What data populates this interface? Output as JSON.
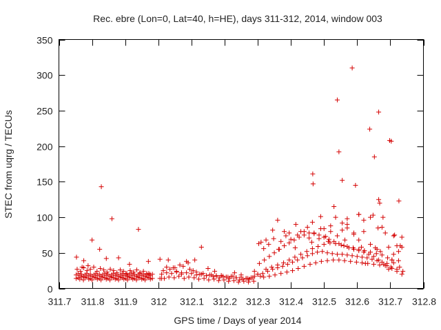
{
  "chart_data": {
    "type": "scatter",
    "title": "Rec. ebre (Lon=0, Lat=40, h=HE), days 311-312, 2014, window 003",
    "xlabel": "GPS time / Days of year 2014",
    "ylabel": "STEC from uqrg / TECUs",
    "xlim": [
      311.7,
      312.8
    ],
    "ylim": [
      0,
      350
    ],
    "xticks": [
      311.7,
      311.8,
      311.9,
      312.0,
      312.1,
      312.2,
      312.3,
      312.4,
      312.5,
      312.6,
      312.7,
      312.8
    ],
    "xtick_labels": [
      "311.7",
      "311.8",
      "311.9",
      "312",
      "312.1",
      "312.2",
      "312.3",
      "312.4",
      "312.5",
      "312.6",
      "312.7",
      "312.8"
    ],
    "yticks": [
      0,
      50,
      100,
      150,
      200,
      250,
      300,
      350
    ],
    "ytick_labels": [
      "0",
      "50",
      "100",
      "150",
      "200",
      "250",
      "300",
      "350"
    ],
    "marker": "plus",
    "color": "#d40000",
    "grid": false,
    "series": [
      {
        "name": "STEC",
        "x": [
          311.752,
          311.752,
          311.758,
          311.758,
          311.763,
          311.763,
          311.768,
          311.768,
          311.774,
          311.774,
          311.779,
          311.779,
          311.784,
          311.784,
          311.79,
          311.79,
          311.795,
          311.795,
          311.8,
          311.8,
          311.806,
          311.806,
          311.811,
          311.811,
          311.816,
          311.816,
          311.822,
          311.822,
          311.827,
          311.827,
          311.832,
          311.832,
          311.838,
          311.838,
          311.843,
          311.843,
          311.848,
          311.848,
          311.854,
          311.854,
          311.859,
          311.859,
          311.864,
          311.864,
          311.87,
          311.87,
          311.875,
          311.875,
          311.88,
          311.88,
          311.886,
          311.886,
          311.891,
          311.891,
          311.896,
          311.896,
          311.902,
          311.902,
          311.907,
          311.907,
          311.912,
          311.912,
          311.918,
          311.918,
          311.923,
          311.923,
          311.928,
          311.928,
          311.934,
          311.934,
          311.939,
          311.939,
          311.944,
          311.944,
          311.95,
          311.95,
          311.955,
          311.955,
          311.96,
          311.96,
          311.966,
          311.966,
          311.971,
          311.971,
          311.976,
          311.976,
          311.982,
          311.982,
          311.755,
          311.765,
          311.775,
          311.785,
          311.795,
          311.805,
          311.815,
          311.825,
          311.835,
          311.845,
          311.855,
          311.865,
          311.875,
          311.885,
          311.895,
          311.905,
          311.915,
          311.925,
          311.935,
          311.945,
          311.955,
          311.965,
          311.975,
          311.753,
          311.77,
          311.775,
          311.788,
          311.8,
          311.823,
          311.828,
          311.843,
          311.86,
          311.88,
          311.913,
          311.94,
          311.97,
          312.005,
          312.01,
          312.018,
          312.025,
          312.032,
          312.04,
          312.048,
          312.055,
          312.062,
          312.07,
          312.078,
          312.085,
          312.092,
          312.1,
          312.108,
          312.115,
          312.122,
          312.13,
          312.138,
          312.145,
          312.152,
          312.16,
          312.168,
          312.175,
          312.182,
          312.19,
          312.198,
          312.205,
          312.212,
          312.22,
          312.228,
          312.235,
          312.242,
          312.25,
          312.258,
          312.265,
          312.272,
          312.28,
          312.288,
          312.005,
          312.015,
          312.025,
          312.035,
          312.045,
          312.055,
          312.065,
          312.075,
          312.085,
          312.095,
          312.105,
          312.115,
          312.125,
          312.135,
          312.145,
          312.155,
          312.165,
          312.175,
          312.185,
          312.195,
          312.205,
          312.215,
          312.225,
          312.235,
          312.245,
          312.255,
          312.265,
          312.275,
          312.285,
          312.01,
          312.03,
          312.05,
          312.07,
          312.09,
          312.11,
          312.13,
          312.15,
          312.17,
          312.19,
          312.21,
          312.23,
          312.25,
          312.27,
          312.29,
          312.3,
          312.318,
          312.335,
          312.352,
          312.37,
          312.388,
          312.405,
          312.422,
          312.44,
          312.458,
          312.475,
          312.492,
          312.51,
          312.528,
          312.545,
          312.562,
          312.58,
          312.598,
          312.615,
          312.632,
          312.65,
          312.668,
          312.685,
          312.702,
          312.72,
          312.738,
          312.3,
          312.315,
          312.33,
          312.345,
          312.36,
          312.375,
          312.39,
          312.405,
          312.42,
          312.435,
          312.45,
          312.465,
          312.48,
          312.495,
          312.51,
          312.525,
          312.54,
          312.555,
          312.57,
          312.585,
          312.6,
          312.615,
          312.63,
          312.645,
          312.66,
          312.675,
          312.69,
          312.705,
          312.72,
          312.735,
          312.308,
          312.325,
          312.342,
          312.36,
          312.378,
          312.395,
          312.412,
          312.43,
          312.448,
          312.465,
          312.482,
          312.5,
          312.518,
          312.535,
          312.552,
          312.57,
          312.588,
          312.605,
          312.622,
          312.64,
          312.658,
          312.675,
          312.692,
          312.71,
          312.728,
          312.29,
          312.305,
          312.32,
          312.335,
          312.35,
          312.365,
          312.38,
          312.395,
          312.41,
          312.425,
          312.44,
          312.455,
          312.47,
          312.485,
          312.5,
          312.515,
          312.53,
          312.545,
          312.56,
          312.575,
          312.59,
          312.605,
          312.62,
          312.635,
          312.65,
          312.665,
          312.68,
          312.695,
          312.71,
          312.725,
          312.735,
          312.303,
          312.318,
          312.333,
          312.348,
          312.37,
          312.385,
          312.4,
          312.42,
          312.44,
          312.455,
          312.47,
          312.49,
          312.505,
          312.52,
          312.54,
          312.555,
          312.57,
          312.59,
          312.605,
          312.62,
          312.64,
          312.655,
          312.67,
          312.69,
          312.705,
          312.72,
          312.735,
          312.31,
          312.345,
          312.38,
          312.415,
          312.45,
          312.485,
          312.52,
          312.555,
          312.59,
          312.625,
          312.66,
          312.695,
          312.73,
          312.363,
          312.413,
          312.463,
          312.513,
          312.563,
          312.613,
          312.663,
          312.713,
          312.325,
          312.36,
          312.395,
          312.43,
          312.465,
          312.5,
          312.535,
          312.57,
          312.605,
          312.64,
          312.675,
          312.71,
          312.466,
          312.467,
          312.53,
          312.54,
          312.545,
          312.555,
          312.585,
          312.595,
          312.605,
          312.62,
          312.638,
          312.648,
          312.652,
          312.665,
          312.665,
          312.668,
          312.678,
          312.685,
          312.698,
          312.703,
          312.726,
          312.725,
          312.705,
          312.57,
          312.49
        ],
        "y": [
          19,
          14,
          21,
          15,
          18,
          13,
          20,
          16,
          17,
          12,
          19,
          15,
          21,
          16,
          18,
          13,
          20,
          14,
          17,
          12,
          19,
          16,
          21,
          15,
          18,
          13,
          20,
          14,
          17,
          12,
          19,
          16,
          21,
          15,
          18,
          13,
          20,
          14,
          17,
          12,
          19,
          16,
          21,
          15,
          18,
          13,
          20,
          14,
          17,
          12,
          19,
          16,
          21,
          15,
          18,
          13,
          20,
          14,
          17,
          12,
          19,
          16,
          21,
          15,
          18,
          13,
          20,
          14,
          17,
          12,
          19,
          16,
          21,
          15,
          18,
          13,
          20,
          14,
          17,
          12,
          19,
          16,
          21,
          15,
          18,
          13,
          20,
          14,
          27,
          24,
          29,
          25,
          27,
          30,
          24,
          28,
          26,
          23,
          27,
          25,
          22,
          26,
          24,
          21,
          25,
          23,
          26,
          22,
          24,
          21,
          20,
          44,
          30,
          39,
          32,
          68,
          55,
          143,
          42,
          98,
          43,
          34,
          83,
          38,
          41,
          20,
          14,
          22,
          16,
          21,
          15,
          23,
          17,
          20,
          14,
          22,
          16,
          21,
          15,
          19,
          13,
          20,
          14,
          18,
          12,
          19,
          13,
          17,
          11,
          18,
          12,
          16,
          10,
          17,
          11,
          15,
          9,
          16,
          10,
          14,
          9,
          15,
          10,
          14,
          25,
          30,
          27,
          29,
          24,
          33,
          31,
          38,
          27,
          25,
          23,
          20,
          21,
          18,
          19,
          17,
          18,
          15,
          17,
          16,
          14,
          17,
          15,
          12,
          13,
          14,
          13,
          15,
          14,
          40,
          29,
          22,
          36,
          40,
          58,
          28,
          24,
          18,
          16,
          22,
          19,
          14,
          17,
          20,
          16,
          17,
          19,
          21,
          23,
          25,
          28,
          31,
          34,
          36,
          38,
          39,
          40,
          40,
          39,
          38,
          37,
          36,
          35,
          34,
          33,
          32,
          30,
          27,
          24,
          20,
          21,
          24,
          27,
          29,
          31,
          34,
          37,
          40,
          43,
          46,
          49,
          51,
          52,
          50,
          49,
          48,
          48,
          47,
          46,
          45,
          44,
          43,
          41,
          39,
          37,
          32,
          28,
          24,
          20,
          17,
          27,
          30,
          33,
          36,
          40,
          44,
          48,
          52,
          56,
          59,
          62,
          64,
          63,
          61,
          59,
          57,
          55,
          53,
          51,
          49,
          47,
          43,
          36,
          30,
          24,
          35,
          40,
          45,
          50,
          55,
          60,
          64,
          68,
          72,
          75,
          78,
          77,
          75,
          72,
          69,
          66,
          63,
          60,
          57,
          55,
          53,
          51,
          48,
          45,
          40,
          34,
          27,
          48,
          52,
          58,
          63,
          56,
          62,
          70,
          66,
          74,
          69,
          75,
          80,
          71,
          78,
          84,
          73,
          80,
          74,
          82,
          85,
          76,
          68,
          80,
          62,
          57,
          52,
          35,
          40,
          60,
          72,
          65,
          82,
          80,
          90,
          86,
          70,
          88,
          92,
          78,
          35,
          55,
          58,
          60,
          55,
          57,
          65,
          66,
          68,
          58,
          85,
          75,
          68,
          96,
          78,
          80,
          93,
          84,
          100,
          90,
          104,
          100,
          86,
          74,
          161,
          147,
          115,
          265,
          192,
          152,
          310,
          145,
          104,
          96,
          224,
          103,
          185,
          248,
          125,
          120,
          100,
          78,
          208,
          207,
          123,
          39,
          40,
          98,
          101
        ]
      }
    ]
  }
}
